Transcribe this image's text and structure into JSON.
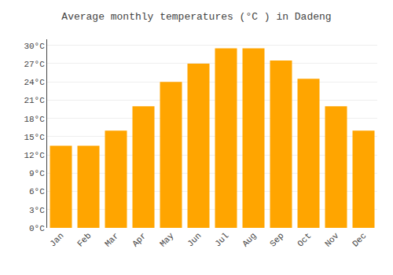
{
  "chart_data": {
    "type": "bar",
    "title": "Average monthly temperatures (°C ) in Dadeng",
    "categories": [
      "Jan",
      "Feb",
      "Mar",
      "Apr",
      "May",
      "Jun",
      "Jul",
      "Aug",
      "Sep",
      "Oct",
      "Nov",
      "Dec"
    ],
    "values": [
      13.5,
      13.5,
      16.0,
      20.0,
      24.0,
      27.0,
      29.5,
      29.5,
      27.5,
      24.5,
      20.0,
      16.0
    ],
    "color": "#FFA500",
    "ylim": [
      0,
      31
    ],
    "yticks": [
      {
        "value": 0,
        "label": "0°C"
      },
      {
        "value": 3,
        "label": "3°C"
      },
      {
        "value": 6,
        "label": "6°C"
      },
      {
        "value": 9,
        "label": "9°C"
      },
      {
        "value": 12,
        "label": "12°C"
      },
      {
        "value": 15,
        "label": "15°C"
      },
      {
        "value": 18,
        "label": "18°C"
      },
      {
        "value": 21,
        "label": "21°C"
      },
      {
        "value": 24,
        "label": "24°C"
      },
      {
        "value": 27,
        "label": "27°C"
      },
      {
        "value": 30,
        "label": "30°C"
      }
    ],
    "grid": true
  }
}
